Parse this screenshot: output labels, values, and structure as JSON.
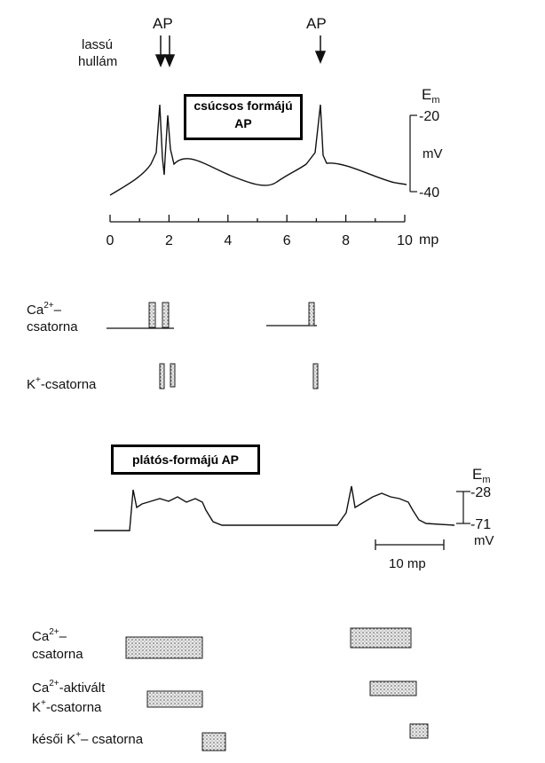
{
  "top_panel": {
    "arrow_labels": {
      "slow_wave_1": "lassú",
      "slow_wave_2": "hullám",
      "ap_left": "AP",
      "ap_right": "AP"
    },
    "title_line1": "csúcsos formájú",
    "title_line2": "AP",
    "em_label": "E",
    "em_sub": "m",
    "scale_top": "-20",
    "scale_unit": "mV",
    "scale_bottom": "-40",
    "time_ticks": [
      "0",
      "2",
      "4",
      "6",
      "8",
      "10"
    ],
    "time_unit": "mp",
    "ca_label_1": "Ca",
    "ca_label_sup": "2+",
    "ca_label_dash": "–",
    "ca_label_2": "csatorna",
    "k_label_pre": "K",
    "k_label_sup": "+",
    "k_label_post": "-csatorna"
  },
  "bottom_panel": {
    "title": "plátós-formájú AP",
    "em_label": "E",
    "em_sub": "m",
    "scale_top": "-28",
    "scale_bottom": "-71",
    "scale_unit": "mV",
    "time_bar_label": "10 mp",
    "ca_label_1": "Ca",
    "ca_label_sup": "2+",
    "ca_label_dash": "–",
    "ca_label_2": "csatorna",
    "caK_label_1a": "Ca",
    "caK_label_1sup": "2+",
    "caK_label_1b": "-aktivált",
    "caK_label_2a": "K",
    "caK_label_2sup": "+",
    "caK_label_2b": "-csatorna",
    "lateK_label_a": "késői K",
    "lateK_label_sup": "+",
    "lateK_label_b": "– csatorna"
  }
}
